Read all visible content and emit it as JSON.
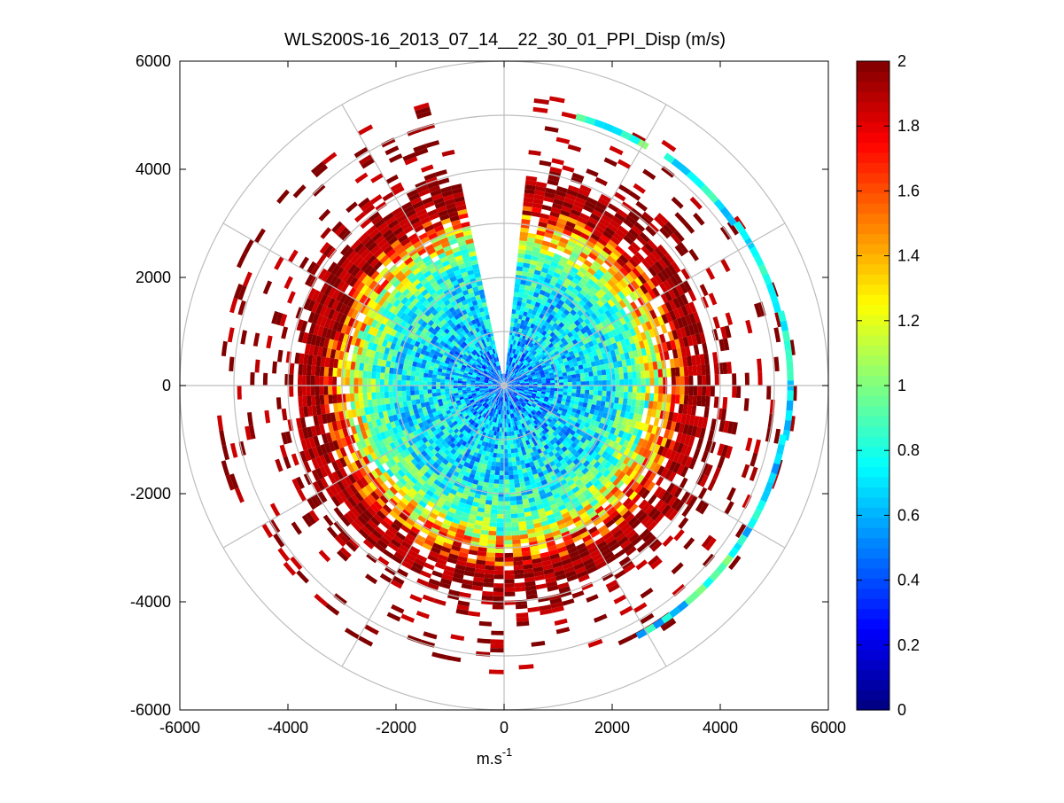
{
  "chart_data": {
    "type": "heatmap",
    "subtype": "polar-ppi-scan",
    "title": "WLS200S-16_2013_07_14__22_30_01_PPI_Disp (m/s)",
    "xlabel": "m.s",
    "xlabel_superscript": "-1",
    "ylabel": "",
    "xlim": [
      -6000,
      6000
    ],
    "ylim": [
      -6000,
      6000
    ],
    "xticks": [
      -6000,
      -4000,
      -2000,
      0,
      2000,
      4000,
      6000
    ],
    "yticks": [
      -6000,
      -4000,
      -2000,
      0,
      2000,
      4000,
      6000
    ],
    "xtick_labels": [
      "-6000",
      "-4000",
      "-2000",
      "0",
      "2000",
      "4000",
      "6000"
    ],
    "ytick_labels": [
      "-6000",
      "-4000",
      "-2000",
      "0",
      "2000",
      "4000",
      "6000"
    ],
    "polar_grid": {
      "range_rings": [
        1000,
        2000,
        3000,
        4000,
        5000,
        6000
      ],
      "spokes_deg": [
        0,
        30,
        60,
        90,
        120,
        150,
        180,
        210,
        240,
        270,
        300,
        330
      ]
    },
    "colorbar": {
      "colormap": "jet",
      "clim": [
        0,
        2
      ],
      "ticks": [
        "0",
        "0.2",
        "0.4",
        "0.6",
        "0.8",
        "1",
        "1.2",
        "1.4",
        "1.6",
        "1.8",
        "2"
      ]
    },
    "value_profile_by_range": [
      {
        "range": 0,
        "value": 0.45
      },
      {
        "range": 1000,
        "value": 0.65
      },
      {
        "range": 2000,
        "value": 0.75
      },
      {
        "range": 2600,
        "value": 1.05
      },
      {
        "range": 3200,
        "value": 1.75
      },
      {
        "range": 3800,
        "value": 2.0
      },
      {
        "range": 6000,
        "value": 2.0
      }
    ],
    "outer_arc_segments": [
      {
        "from_deg": 15,
        "to_deg": 30,
        "range": 5150,
        "value": 0.85
      },
      {
        "from_deg": 35,
        "to_deg": 55,
        "range": 5200,
        "value": 0.75
      },
      {
        "from_deg": 55,
        "to_deg": 75,
        "range": 5250,
        "value": 0.7
      },
      {
        "from_deg": 75,
        "to_deg": 100,
        "range": 5300,
        "value": 0.75
      },
      {
        "from_deg": 100,
        "to_deg": 125,
        "range": 5250,
        "value": 0.7
      },
      {
        "from_deg": 125,
        "to_deg": 140,
        "range": 5250,
        "value": 0.9
      },
      {
        "from_deg": 140,
        "to_deg": 152,
        "range": 5250,
        "value": 0.7
      }
    ],
    "data_gap_sector_deg": [
      -12,
      6
    ],
    "data_extent_range": 5400
  }
}
